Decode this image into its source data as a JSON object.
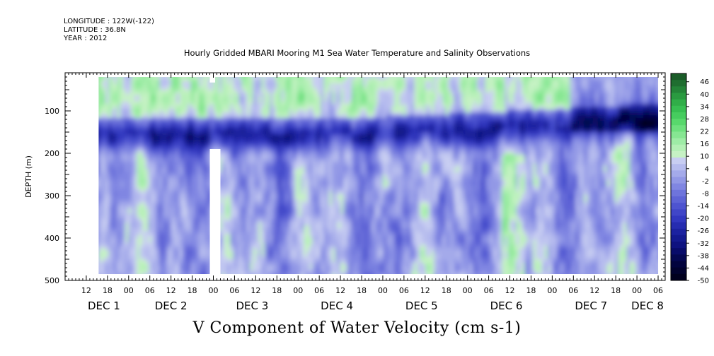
{
  "header": {
    "longitude": "LONGITUDE : 122W(-122)",
    "latitude": "LATITUDE : 36.8N",
    "year": "YEAR : 2012"
  },
  "title": "Hourly Gridded MBARI Mooring M1 Sea Water Temperature and Salinity Observations",
  "variable_title": "V Component of Water Velocity (cm s-1)",
  "chart_data": {
    "type": "heatmap",
    "title": "Hourly Gridded MBARI Mooring M1 Sea Water Temperature and Salinity Observations",
    "variable": "V Component of Water Velocity (cm s-1)",
    "ylabel": "DEPTH (m)",
    "xlabel": "",
    "x_unit": "hours since 2012-12-01 00:00",
    "xlim": [
      -18,
      152
    ],
    "data_extent_x": [
      -8.5,
      150
    ],
    "ylim": [
      500,
      10
    ],
    "data_extent_y": [
      20,
      485
    ],
    "y_ticks": [
      100,
      200,
      300,
      400,
      500
    ],
    "y_tick_labels": [
      "100",
      "200",
      "300",
      "400",
      "500"
    ],
    "x_ticks_6h": [
      -12,
      -6,
      0,
      6,
      12,
      18,
      24,
      30,
      36,
      42,
      48,
      54,
      60,
      66,
      72,
      78,
      84,
      90,
      96,
      102,
      108,
      114,
      120,
      126,
      132,
      138,
      144,
      150
    ],
    "x_tick_labels": [
      "12",
      "18",
      "00",
      "06",
      "12",
      "18",
      "00",
      "06",
      "12",
      "18",
      "00",
      "06",
      "12",
      "18",
      "00",
      "06",
      "12",
      "18",
      "00",
      "06",
      "12",
      "18",
      "00",
      "06",
      "12",
      "18",
      "00",
      "06"
    ],
    "date_labels": [
      {
        "text": "DEC  1",
        "x": -7
      },
      {
        "text": "DEC  2",
        "x": 12
      },
      {
        "text": "DEC  3",
        "x": 35
      },
      {
        "text": "DEC  4",
        "x": 59
      },
      {
        "text": "DEC  5",
        "x": 83
      },
      {
        "text": "DEC  6",
        "x": 107
      },
      {
        "text": "DEC  7",
        "x": 131
      },
      {
        "text": "DEC  8",
        "x": 147
      }
    ],
    "colorbar": {
      "min": -50,
      "max": 50,
      "step": 3,
      "tick_labels": [
        "46",
        "40",
        "34",
        "28",
        "22",
        "16",
        "10",
        "4",
        "-2",
        "-8",
        "-14",
        "-20",
        "-26",
        "-32",
        "-38",
        "-44",
        "-50"
      ],
      "colors": [
        "#1a5c28",
        "#1f6e30",
        "#248438",
        "#2a9a40",
        "#30ae48",
        "#38bf52",
        "#46cc5e",
        "#58d86c",
        "#6ee07e",
        "#86e692",
        "#9eeca6",
        "#b4f0b6",
        "#c6f2c4",
        "#c8cef2",
        "#b6bcee",
        "#a4aaea",
        "#9298e6",
        "#8086e2",
        "#6e74dc",
        "#5e64d6",
        "#4e54d0",
        "#4046c8",
        "#3238c0",
        "#262cb0",
        "#1c22a0",
        "#141a90",
        "#0e1280",
        "#080c6a",
        "#040852",
        "#02043e",
        "#01022e",
        "#00001e"
      ]
    },
    "data_gaps": [
      {
        "x": [
          23,
          26
        ],
        "y": [
          190,
          485
        ]
      },
      {
        "x": [
          23,
          24.5
        ],
        "y": [
          20,
          33
        ]
      }
    ]
  }
}
